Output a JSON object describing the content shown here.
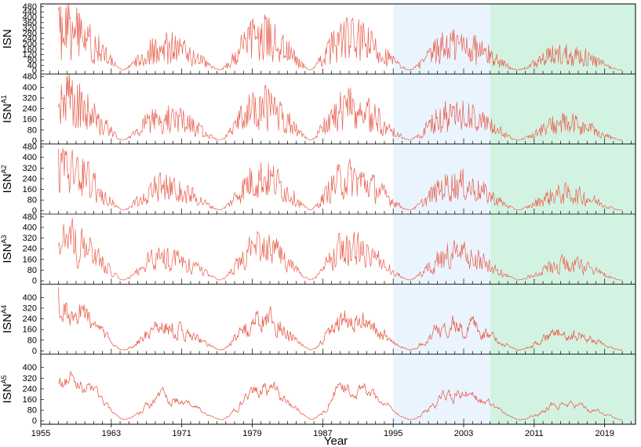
{
  "chart_data": {
    "type": "line",
    "xlabel": "Year",
    "x_ticks": [
      "1955",
      "1963",
      "1971",
      "1979",
      "1987",
      "1995",
      "2003",
      "2011",
      "2019"
    ],
    "x_range": [
      1955,
      2022.5
    ],
    "y_range": [
      -25,
      500
    ],
    "y_ticks": [
      "0",
      "80",
      "160",
      "240",
      "320",
      "400",
      "480"
    ],
    "series_color": "#e8604f",
    "shaded_regions": [
      {
        "from": 1995,
        "to": 2006,
        "color": "#eaf4fe"
      },
      {
        "from": 2006,
        "to": 2022.5,
        "color": "#d3f3e2"
      }
    ],
    "data_span": [
      1957,
      2021
    ],
    "cycle_peaks": [
      {
        "year": 1957.8,
        "value": 460
      },
      {
        "year": 1968.9,
        "value": 270
      },
      {
        "year": 1979.9,
        "value": 380
      },
      {
        "year": 1989.6,
        "value": 370
      },
      {
        "year": 2001.9,
        "value": 300
      },
      {
        "year": 2014.3,
        "value": 190
      }
    ],
    "panels": [
      {
        "label_base": "ISN",
        "label_sup": "",
        "y_ticks": [
          "0",
          "40",
          "80",
          "120",
          "160",
          "200",
          "240",
          "280",
          "320",
          "360",
          "400",
          "440",
          "480"
        ]
      },
      {
        "label_base": "ISN",
        "label_sup": "A1",
        "y_ticks": [
          "0",
          "80",
          "160",
          "240",
          "320",
          "400",
          "480"
        ]
      },
      {
        "label_base": "ISN",
        "label_sup": "A2",
        "y_ticks": [
          "0",
          "80",
          "160",
          "240",
          "320",
          "400",
          "480"
        ]
      },
      {
        "label_base": "ISN",
        "label_sup": "A3",
        "y_ticks": [
          "0",
          "80",
          "160",
          "240",
          "320",
          "400",
          "480"
        ]
      },
      {
        "label_base": "ISN",
        "label_sup": "A4",
        "y_ticks": [
          "0",
          "80",
          "160",
          "240",
          "320",
          "400"
        ]
      },
      {
        "label_base": "ISN",
        "label_sup": "A5",
        "y_ticks": [
          "0",
          "80",
          "160",
          "240",
          "320",
          "400"
        ]
      }
    ]
  }
}
